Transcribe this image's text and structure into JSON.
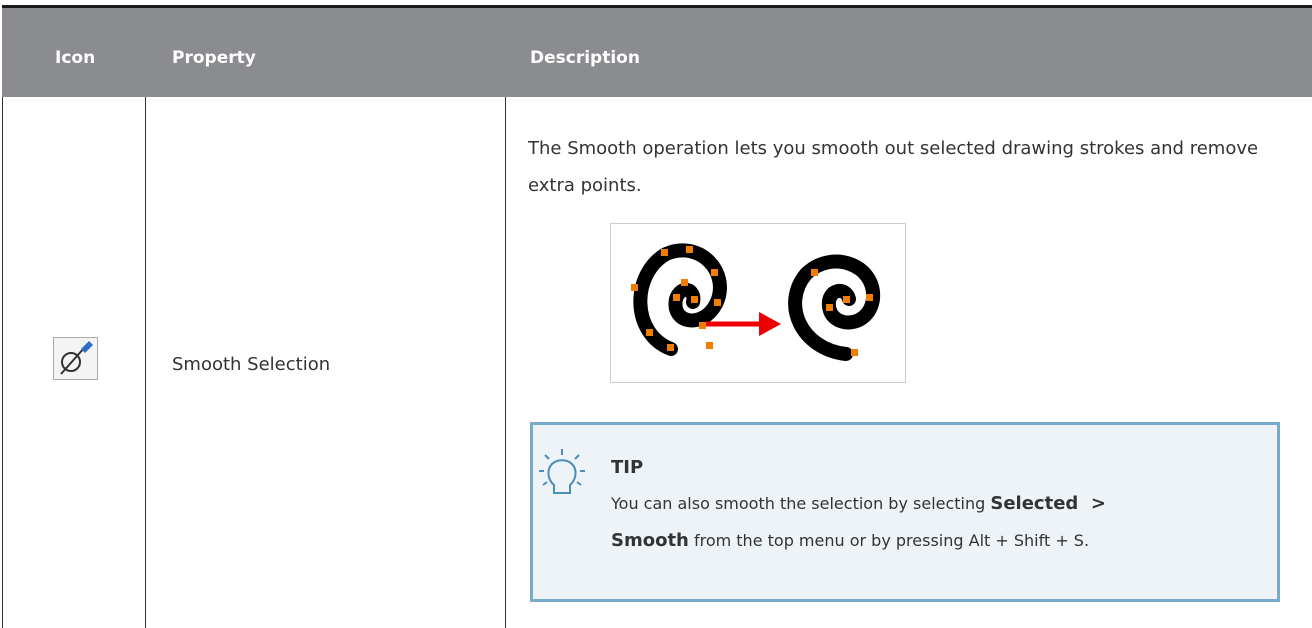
{
  "table": {
    "columns": [
      "Icon",
      "Property",
      "Description"
    ],
    "rows": [
      {
        "property": "Smooth Selection",
        "description": "The Smooth operation lets you smooth out selected drawing strokes and remove extra points.",
        "tip": {
          "label": "TIP",
          "text": [
            "You can also smooth the selection by selecting ",
            "Selected  >",
            "Smooth",
            " from the top menu or by pressing Alt + Shift + S."
          ]
        }
      }
    ]
  }
}
